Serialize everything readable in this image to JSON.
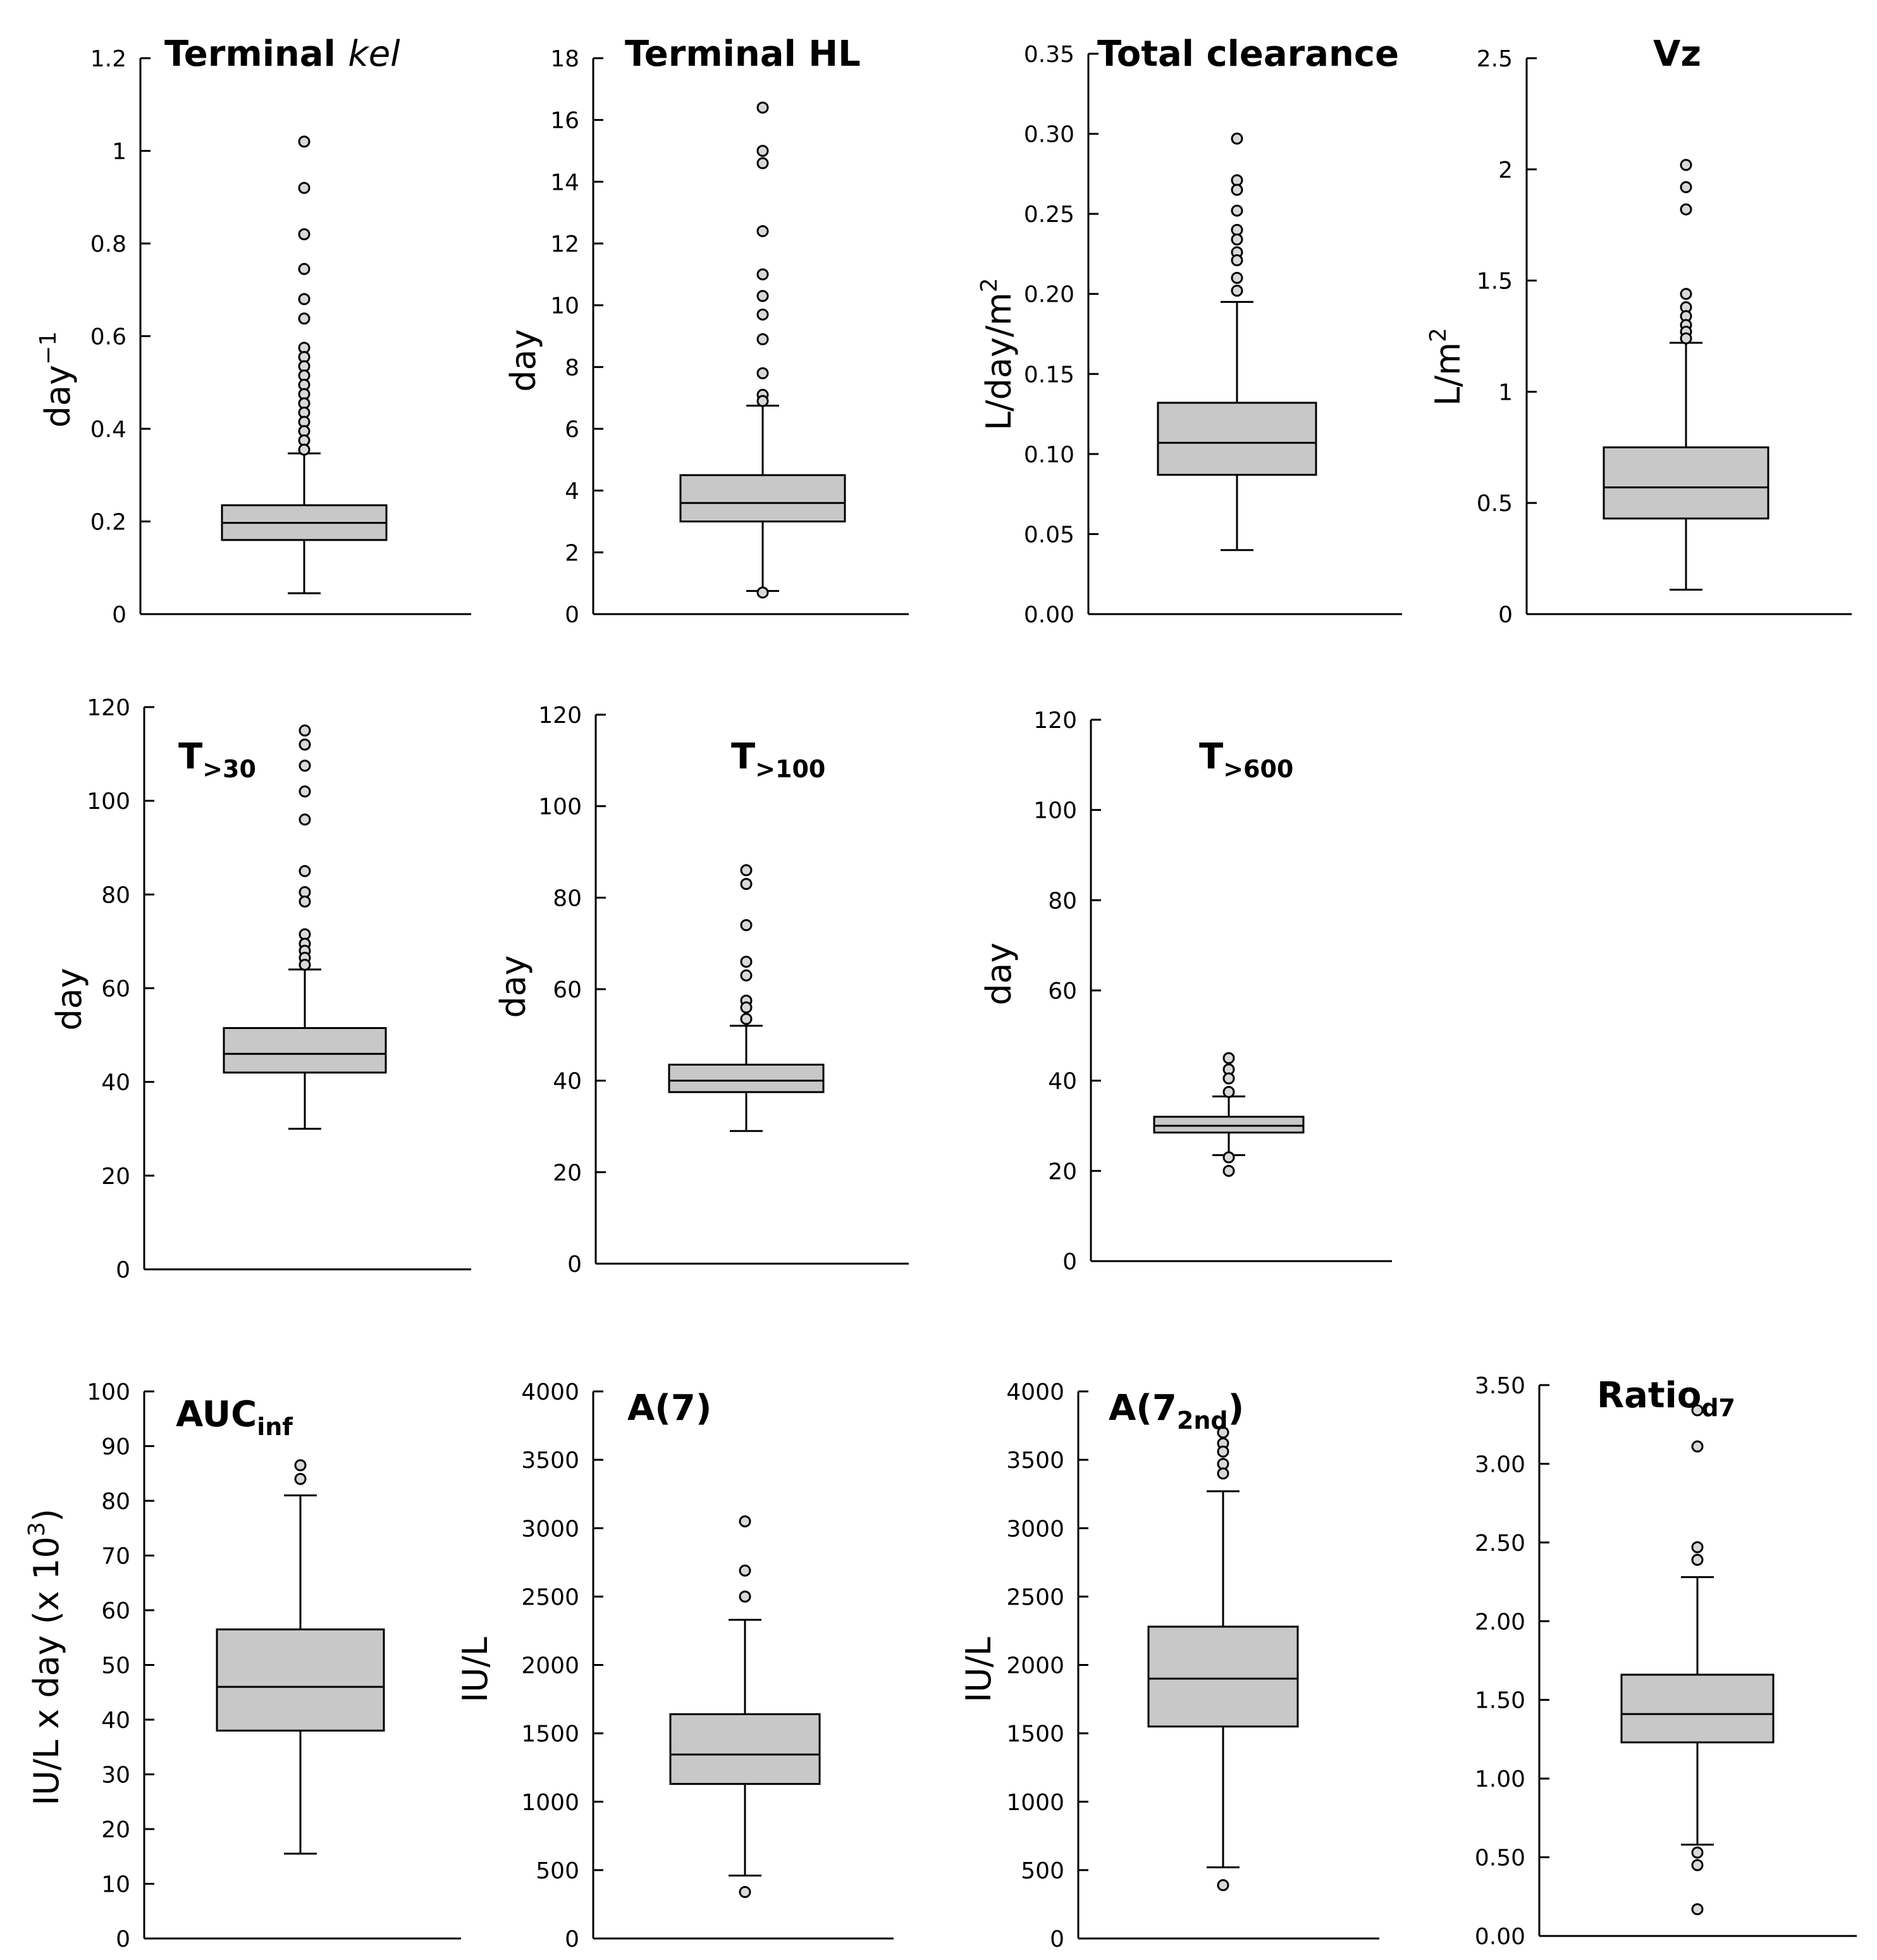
{
  "figure": {
    "style": {
      "box_fill": "#c8c8c8",
      "stroke": "#000000",
      "outlier_fill": "#d9d9d9"
    }
  },
  "chart_data": [
    {
      "type": "box",
      "title": "Terminal ",
      "title_italic": "kel",
      "ylabel": "day",
      "ylabel_sup": "−1",
      "ylim": [
        0,
        1.2
      ],
      "ticks": [
        0,
        0.2,
        0.4,
        0.6,
        0.8,
        1,
        1.2
      ],
      "tick_labels": [
        "0",
        "0.2",
        "0.4",
        "0.6",
        "0.8",
        "1",
        "1.2"
      ],
      "box": {
        "whisker_low": 0.045,
        "q1": 0.16,
        "median": 0.197,
        "q3": 0.235,
        "whisker_high": 0.347
      },
      "outliers": [
        1.02,
        0.92,
        0.82,
        0.745,
        0.68,
        0.638,
        0.575,
        0.555,
        0.535,
        0.515,
        0.495,
        0.475,
        0.455,
        0.435,
        0.415,
        0.395,
        0.375,
        0.355
      ]
    },
    {
      "type": "box",
      "title": "Terminal HL",
      "ylabel": "day",
      "ylim": [
        0,
        18
      ],
      "ticks": [
        0,
        2,
        4,
        6,
        8,
        10,
        12,
        14,
        16,
        18
      ],
      "tick_labels": [
        "0",
        "2",
        "4",
        "6",
        "8",
        "10",
        "12",
        "14",
        "16",
        "18"
      ],
      "box": {
        "whisker_low": 0.75,
        "q1": 3.0,
        "median": 3.6,
        "q3": 4.5,
        "whisker_high": 6.75
      },
      "outliers": [
        16.4,
        15.0,
        14.6,
        12.4,
        11.0,
        10.3,
        9.7,
        8.9,
        7.8,
        7.1,
        6.9,
        0.7
      ]
    },
    {
      "type": "box",
      "title": "Total clearance",
      "ylabel": "L/day/m",
      "ylabel_sup": "2",
      "ylim": [
        0,
        0.35
      ],
      "ticks": [
        0,
        0.05,
        0.1,
        0.15,
        0.2,
        0.25,
        0.3,
        0.35
      ],
      "tick_labels": [
        "0.00",
        "0.05",
        "0.10",
        "0.15",
        "0.20",
        "0.25",
        "0.30",
        "0.35"
      ],
      "box": {
        "whisker_low": 0.04,
        "q1": 0.087,
        "median": 0.107,
        "q3": 0.132,
        "whisker_high": 0.195
      },
      "outliers": [
        0.297,
        0.271,
        0.265,
        0.252,
        0.24,
        0.234,
        0.226,
        0.221,
        0.21,
        0.202
      ]
    },
    {
      "type": "box",
      "title": "Vz",
      "ylabel": "L/m",
      "ylabel_sup": "2",
      "ylim": [
        0,
        2.5
      ],
      "ticks": [
        0,
        0.5,
        1,
        1.5,
        2,
        2.5
      ],
      "tick_labels": [
        "0",
        "0.5",
        "1",
        "1.5",
        "2",
        "2.5"
      ],
      "box": {
        "whisker_low": 0.11,
        "q1": 0.43,
        "median": 0.57,
        "q3": 0.75,
        "whisker_high": 1.22
      },
      "outliers": [
        2.02,
        1.92,
        1.82,
        1.44,
        1.38,
        1.34,
        1.3,
        1.27,
        1.24
      ]
    },
    {
      "type": "box",
      "title": "T",
      "title_sub": ">30",
      "ylabel": "day",
      "ylim": [
        0,
        120
      ],
      "ticks": [
        0,
        20,
        40,
        60,
        80,
        100,
        120
      ],
      "tick_labels": [
        "0",
        "20",
        "40",
        "60",
        "80",
        "100",
        "120"
      ],
      "box": {
        "whisker_low": 30,
        "q1": 42,
        "median": 46,
        "q3": 51.5,
        "whisker_high": 64
      },
      "outliers": [
        115,
        112,
        107.5,
        102,
        96,
        85,
        80.5,
        78.5,
        71.5,
        69.5,
        68,
        66.5,
        65
      ]
    },
    {
      "type": "box",
      "title": "T",
      "title_sub": ">100",
      "ylabel": "day",
      "ylim": [
        0,
        120
      ],
      "ticks": [
        0,
        20,
        40,
        60,
        80,
        100,
        120
      ],
      "tick_labels": [
        "0",
        "20",
        "40",
        "60",
        "80",
        "100",
        "120"
      ],
      "box": {
        "whisker_low": 29,
        "q1": 37.5,
        "median": 40,
        "q3": 43.5,
        "whisker_high": 52
      },
      "outliers": [
        86,
        83,
        74,
        66,
        63,
        57.5,
        56,
        53.5
      ]
    },
    {
      "type": "box",
      "title": "T",
      "title_sub": ">600",
      "ylabel": "day",
      "ylim": [
        0,
        120
      ],
      "ticks": [
        0,
        20,
        40,
        60,
        80,
        100,
        120
      ],
      "tick_labels": [
        "0",
        "20",
        "40",
        "60",
        "80",
        "100",
        "120"
      ],
      "box": {
        "whisker_low": 23.5,
        "q1": 28.5,
        "median": 30,
        "q3": 32,
        "whisker_high": 36.5
      },
      "outliers": [
        45,
        42.5,
        40.5,
        37.5,
        23,
        20
      ]
    },
    {
      "type": "box",
      "title": "AUC",
      "title_sub": "inf",
      "ylabel": "IU/L x day (x 10",
      "ylabel_sup": "3",
      "ylabel_tail": ")",
      "ylim": [
        0,
        100
      ],
      "ticks": [
        0,
        10,
        20,
        30,
        40,
        50,
        60,
        70,
        80,
        90,
        100
      ],
      "tick_labels": [
        "0",
        "10",
        "20",
        "30",
        "40",
        "50",
        "60",
        "70",
        "80",
        "90",
        "100"
      ],
      "box": {
        "whisker_low": 15.5,
        "q1": 38,
        "median": 46,
        "q3": 56.5,
        "whisker_high": 81
      },
      "outliers": [
        86.5,
        84
      ]
    },
    {
      "type": "box",
      "title": "A(7)",
      "ylabel": "IU/L",
      "ylim": [
        0,
        4000
      ],
      "ticks": [
        0,
        500,
        1000,
        1500,
        2000,
        2500,
        3000,
        3500,
        4000
      ],
      "tick_labels": [
        "0",
        "500",
        "1000",
        "1500",
        "2000",
        "2500",
        "3000",
        "3500",
        "4000"
      ],
      "box": {
        "whisker_low": 460,
        "q1": 1130,
        "median": 1345,
        "q3": 1640,
        "whisker_high": 2330
      },
      "outliers": [
        3050,
        2690,
        2500,
        340
      ]
    },
    {
      "type": "box",
      "title": "A(7",
      "title_sub": "2nd",
      "title_tail": ")",
      "ylabel": "IU/L",
      "ylim": [
        0,
        4000
      ],
      "ticks": [
        0,
        500,
        1000,
        1500,
        2000,
        2500,
        3000,
        3500,
        4000
      ],
      "tick_labels": [
        "0",
        "500",
        "1000",
        "1500",
        "2000",
        "2500",
        "3000",
        "3500",
        "4000"
      ],
      "box": {
        "whisker_low": 520,
        "q1": 1550,
        "median": 1900,
        "q3": 2280,
        "whisker_high": 3270
      },
      "outliers": [
        3700,
        3620,
        3560,
        3470,
        3400,
        390
      ]
    },
    {
      "type": "box",
      "title": "Ratio",
      "title_sub": "d7",
      "ylabel": "",
      "ylim": [
        0,
        3.5
      ],
      "ticks": [
        0,
        0.5,
        1,
        1.5,
        2,
        2.5,
        3,
        3.5
      ],
      "tick_labels": [
        "0.00",
        "0.50",
        "1.00",
        "1.50",
        "2.00",
        "2.50",
        "3.00",
        "3.50"
      ],
      "box": {
        "whisker_low": 0.58,
        "q1": 1.23,
        "median": 1.41,
        "q3": 1.66,
        "whisker_high": 2.28
      },
      "outliers": [
        3.34,
        3.11,
        2.47,
        2.39,
        0.53,
        0.45,
        0.17
      ]
    }
  ]
}
